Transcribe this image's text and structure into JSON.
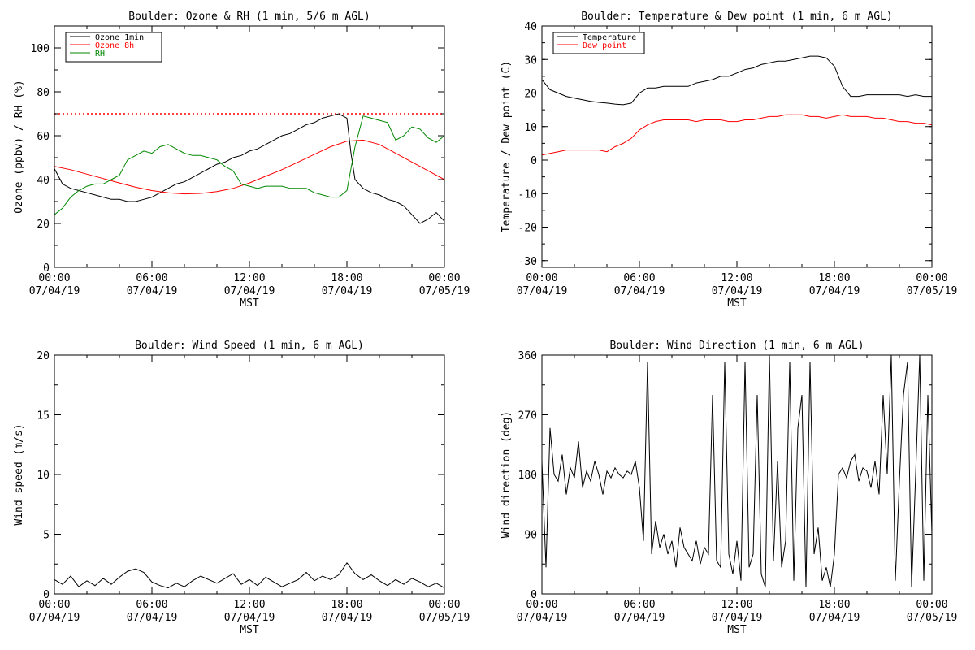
{
  "chart_data": [
    {
      "type": "line",
      "title": "Boulder: Ozone & RH (1 min, 5/6 m AGL)",
      "xlabel": "MST",
      "ylabel": "Ozone (ppbv) / RH (%)",
      "xlim": [
        0,
        24
      ],
      "ylim": [
        0,
        110
      ],
      "y_ticks": [
        0,
        20,
        40,
        60,
        80,
        100
      ],
      "x_tick_labels": [
        {
          "time": "00:00",
          "date": "07/04/19"
        },
        {
          "time": "06:00",
          "date": "07/04/19"
        },
        {
          "time": "12:00",
          "date": "07/04/19"
        },
        {
          "time": "18:00",
          "date": "07/04/19"
        },
        {
          "time": "00:00",
          "date": "07/05/19"
        }
      ],
      "reference_line": {
        "y": 70,
        "color": "#ff0000",
        "style": "dotted"
      },
      "legend": "top-left",
      "series": [
        {
          "name": "Ozone 1min",
          "color": "#000000",
          "x": [
            0,
            0.5,
            1,
            1.5,
            2,
            2.5,
            3,
            3.5,
            4,
            4.5,
            5,
            5.5,
            6,
            6.5,
            7,
            7.5,
            8,
            8.5,
            9,
            9.5,
            10,
            10.5,
            11,
            11.5,
            12,
            12.5,
            13,
            13.5,
            14,
            14.5,
            15,
            15.5,
            16,
            16.5,
            17,
            17.5,
            18,
            18.25,
            18.5,
            19,
            19.5,
            20,
            20.5,
            21,
            21.5,
            22,
            22.5,
            23,
            23.5,
            24
          ],
          "values": [
            45,
            38,
            36,
            35,
            34,
            33,
            32,
            31,
            31,
            30,
            30,
            31,
            32,
            34,
            36,
            38,
            39,
            41,
            43,
            45,
            47,
            48,
            50,
            51,
            53,
            54,
            56,
            58,
            60,
            61,
            63,
            65,
            66,
            68,
            69,
            70,
            68,
            52,
            40,
            36,
            34,
            33,
            31,
            30,
            28,
            24,
            20,
            22,
            25,
            21
          ]
        },
        {
          "name": "Ozone 8h",
          "color": "#ff0000",
          "x": [
            0,
            1,
            2,
            3,
            4,
            5,
            6,
            7,
            8,
            9,
            10,
            11,
            12,
            13,
            14,
            15,
            16,
            17,
            18,
            19,
            20,
            21,
            22,
            23,
            24
          ],
          "values": [
            46,
            44.5,
            42.5,
            40.5,
            38.5,
            36.5,
            35,
            34,
            33.5,
            33.7,
            34.5,
            36,
            38.5,
            41.5,
            44.5,
            48,
            51.5,
            55,
            57.5,
            58,
            56,
            52,
            48,
            44,
            40
          ]
        },
        {
          "name": "RH",
          "color": "#008800",
          "x": [
            0,
            0.5,
            1,
            1.5,
            2,
            2.5,
            3,
            3.5,
            4,
            4.5,
            5,
            5.5,
            6,
            6.5,
            7,
            7.5,
            8,
            8.5,
            9,
            9.5,
            10,
            10.5,
            11,
            11.5,
            12,
            12.5,
            13,
            13.5,
            14,
            14.5,
            15,
            15.5,
            16,
            16.5,
            17,
            17.5,
            18,
            18.5,
            19,
            19.5,
            20,
            20.5,
            21,
            21.5,
            22,
            22.5,
            23,
            23.5,
            24
          ],
          "values": [
            24,
            27,
            32,
            35,
            37,
            38,
            38,
            40,
            42,
            49,
            51,
            53,
            52,
            55,
            56,
            54,
            52,
            51,
            51,
            50,
            49,
            46,
            44,
            38,
            37,
            36,
            37,
            37,
            37,
            36,
            36,
            36,
            34,
            33,
            32,
            32,
            35,
            55,
            69,
            68,
            67,
            66,
            58,
            60,
            64,
            63,
            59,
            57,
            60
          ]
        }
      ]
    },
    {
      "type": "line",
      "title": "Boulder: Temperature & Dew point (1 min, 6 m AGL)",
      "xlabel": "MST",
      "ylabel": "Temperature / Dew point (C)",
      "xlim": [
        0,
        24
      ],
      "ylim": [
        -32,
        40
      ],
      "y_ticks": [
        -30,
        -20,
        -10,
        0,
        10,
        20,
        30,
        40
      ],
      "x_tick_labels": [
        {
          "time": "00:00",
          "date": "07/04/19"
        },
        {
          "time": "06:00",
          "date": "07/04/19"
        },
        {
          "time": "12:00",
          "date": "07/04/19"
        },
        {
          "time": "18:00",
          "date": "07/04/19"
        },
        {
          "time": "00:00",
          "date": "07/05/19"
        }
      ],
      "legend": "top-left",
      "series": [
        {
          "name": "Temperature",
          "color": "#000000",
          "x": [
            0,
            0.5,
            1,
            1.5,
            2,
            2.5,
            3,
            3.5,
            4,
            4.5,
            5,
            5.5,
            6,
            6.5,
            7,
            7.5,
            8,
            8.5,
            9,
            9.5,
            10,
            10.5,
            11,
            11.5,
            12,
            12.5,
            13,
            13.5,
            14,
            14.5,
            15,
            15.5,
            16,
            16.5,
            17,
            17.5,
            18,
            18.5,
            19,
            19.5,
            20,
            20.5,
            21,
            21.5,
            22,
            22.5,
            23,
            23.5,
            24
          ],
          "values": [
            24,
            21,
            20,
            19,
            18.5,
            18,
            17.5,
            17.2,
            17,
            16.7,
            16.5,
            17,
            20,
            21.5,
            21.5,
            22,
            22,
            22,
            22,
            23,
            23.5,
            24,
            25,
            25,
            26,
            27,
            27.5,
            28.5,
            29,
            29.5,
            29.5,
            30,
            30.5,
            31,
            31,
            30.5,
            28,
            22,
            19,
            19,
            19.5,
            19.5,
            19.5,
            19.5,
            19.5,
            19,
            19.5,
            19,
            19
          ]
        },
        {
          "name": "Dew point",
          "color": "#ff0000",
          "x": [
            0,
            0.5,
            1,
            1.5,
            2,
            2.5,
            3,
            3.5,
            4,
            4.5,
            5,
            5.5,
            6,
            6.5,
            7,
            7.5,
            8,
            8.5,
            9,
            9.5,
            10,
            10.5,
            11,
            11.5,
            12,
            12.5,
            13,
            13.5,
            14,
            14.5,
            15,
            15.5,
            16,
            16.5,
            17,
            17.5,
            18,
            18.5,
            19,
            19.5,
            20,
            20.5,
            21,
            21.5,
            22,
            22.5,
            23,
            23.5,
            24
          ],
          "values": [
            1.5,
            2,
            2.5,
            3,
            3,
            3,
            3,
            3,
            2.5,
            4,
            5,
            6.5,
            9,
            10.5,
            11.5,
            12,
            12,
            12,
            12,
            11.5,
            12,
            12,
            12,
            11.5,
            11.5,
            12,
            12,
            12.5,
            13,
            13,
            13.5,
            13.5,
            13.5,
            13,
            13,
            12.5,
            13,
            13.5,
            13,
            13,
            13,
            12.5,
            12.5,
            12,
            11.5,
            11.5,
            11,
            11,
            10.5
          ]
        }
      ]
    },
    {
      "type": "line",
      "title": "Boulder: Wind Speed (1 min, 6 m AGL)",
      "xlabel": "MST",
      "ylabel": "Wind speed (m/s)",
      "xlim": [
        0,
        24
      ],
      "ylim": [
        0,
        20
      ],
      "y_ticks": [
        0,
        5,
        10,
        15,
        20
      ],
      "x_tick_labels": [
        {
          "time": "00:00",
          "date": "07/04/19"
        },
        {
          "time": "06:00",
          "date": "07/04/19"
        },
        {
          "time": "12:00",
          "date": "07/04/19"
        },
        {
          "time": "18:00",
          "date": "07/04/19"
        },
        {
          "time": "00:00",
          "date": "07/05/19"
        }
      ],
      "series": [
        {
          "color": "#000000",
          "x": [
            0,
            0.5,
            1,
            1.5,
            2,
            2.5,
            3,
            3.5,
            4,
            4.5,
            5,
            5.5,
            6,
            6.5,
            7,
            7.5,
            8,
            8.5,
            9,
            9.5,
            10,
            10.5,
            11,
            11.5,
            12,
            12.5,
            13,
            13.5,
            14,
            14.5,
            15,
            15.5,
            16,
            16.5,
            17,
            17.5,
            18,
            18.5,
            19,
            19.5,
            20,
            20.5,
            21,
            21.5,
            22,
            22.5,
            23,
            23.5,
            24
          ],
          "values": [
            1.2,
            0.8,
            1.5,
            0.6,
            1.1,
            0.7,
            1.3,
            0.8,
            1.4,
            1.9,
            2.1,
            1.8,
            1.0,
            0.7,
            0.5,
            0.9,
            0.6,
            1.1,
            1.5,
            1.2,
            0.9,
            1.3,
            1.7,
            0.8,
            1.2,
            0.7,
            1.4,
            1.0,
            0.6,
            0.9,
            1.2,
            1.8,
            1.1,
            1.5,
            1.2,
            1.6,
            2.6,
            1.7,
            1.2,
            1.6,
            1.1,
            0.7,
            1.2,
            0.8,
            1.3,
            1.0,
            0.6,
            0.9,
            0.5
          ]
        }
      ]
    },
    {
      "type": "line",
      "title": "Boulder: Wind Direction (1 min, 6 m AGL)",
      "xlabel": "MST",
      "ylabel": "Wind direction (deg)",
      "xlim": [
        0,
        24
      ],
      "ylim": [
        0,
        360
      ],
      "y_ticks": [
        0,
        90,
        180,
        270,
        360
      ],
      "x_tick_labels": [
        {
          "time": "00:00",
          "date": "07/04/19"
        },
        {
          "time": "06:00",
          "date": "07/04/19"
        },
        {
          "time": "12:00",
          "date": "07/04/19"
        },
        {
          "time": "18:00",
          "date": "07/04/19"
        },
        {
          "time": "00:00",
          "date": "07/05/19"
        }
      ],
      "series": [
        {
          "color": "#000000",
          "x": [
            0,
            0.25,
            0.5,
            0.75,
            1,
            1.25,
            1.5,
            1.75,
            2,
            2.25,
            2.5,
            2.75,
            3,
            3.25,
            3.5,
            3.75,
            4,
            4.25,
            4.5,
            4.75,
            5,
            5.25,
            5.5,
            5.75,
            6,
            6.25,
            6.5,
            6.75,
            7,
            7.25,
            7.5,
            7.75,
            8,
            8.25,
            8.5,
            8.75,
            9,
            9.25,
            9.5,
            9.75,
            10,
            10.25,
            10.5,
            10.75,
            11,
            11.25,
            11.5,
            11.75,
            12,
            12.25,
            12.5,
            12.75,
            13,
            13.25,
            13.5,
            13.75,
            14,
            14.25,
            14.5,
            14.75,
            15,
            15.25,
            15.5,
            15.75,
            16,
            16.25,
            16.5,
            16.75,
            17,
            17.25,
            17.5,
            17.75,
            18,
            18.25,
            18.5,
            18.75,
            19,
            19.25,
            19.5,
            19.75,
            20,
            20.25,
            20.5,
            20.75,
            21,
            21.25,
            21.5,
            21.75,
            22,
            22.25,
            22.5,
            22.75,
            23,
            23.25,
            23.5,
            23.75,
            24
          ],
          "values": [
            200,
            40,
            250,
            180,
            170,
            210,
            150,
            190,
            175,
            230,
            160,
            185,
            170,
            200,
            180,
            150,
            185,
            175,
            190,
            180,
            175,
            185,
            180,
            200,
            160,
            80,
            350,
            60,
            110,
            70,
            90,
            60,
            80,
            40,
            100,
            70,
            60,
            50,
            80,
            45,
            70,
            60,
            300,
            50,
            40,
            350,
            60,
            30,
            80,
            20,
            350,
            40,
            60,
            300,
            30,
            10,
            360,
            50,
            200,
            40,
            80,
            350,
            20,
            250,
            300,
            10,
            350,
            60,
            100,
            20,
            40,
            10,
            60,
            180,
            190,
            175,
            200,
            210,
            170,
            190,
            185,
            160,
            200,
            150,
            300,
            180,
            360,
            20,
            170,
            300,
            350,
            10,
            180,
            360,
            20,
            300,
            90
          ]
        }
      ]
    }
  ]
}
